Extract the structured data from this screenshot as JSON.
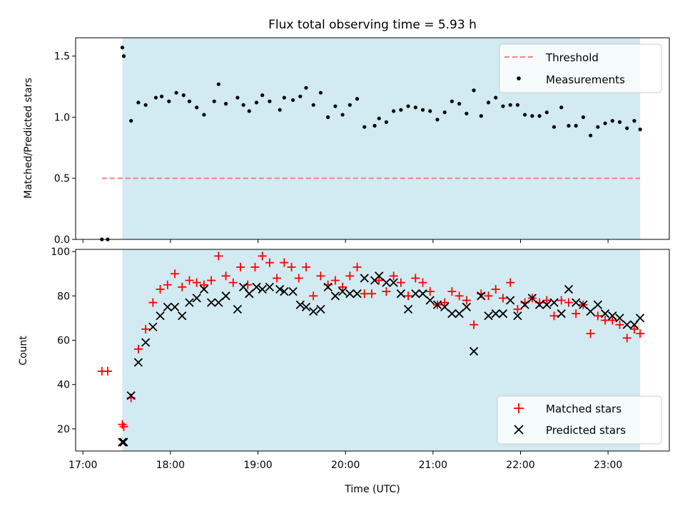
{
  "chart_data": [
    {
      "type": "scatter",
      "title": "Flux total observing time = 5.93 h",
      "xlabel": "",
      "ylabel": "Matched/Predicted stars",
      "xlim": [
        "16:55",
        "23:42"
      ],
      "ylim": [
        0,
        1.65
      ],
      "yticks": [
        0.0,
        0.5,
        1.0,
        1.5
      ],
      "ytick_labels": [
        "0.0",
        "0.5",
        "1.0",
        "1.5"
      ],
      "highlight_span": [
        "17:27",
        "23:22"
      ],
      "highlight_color": "#add8e6",
      "threshold": {
        "name": "Threshold",
        "x": [
          "17:13",
          "23:22"
        ],
        "y": 0.5,
        "color": "#ff7f7f",
        "style": "dashed"
      },
      "series": [
        {
          "name": "Measurements",
          "color": "#000000",
          "points": [
            [
              "17:13",
              0.0
            ],
            [
              "17:17",
              0.0
            ],
            [
              "17:27",
              1.57
            ],
            [
              "17:28",
              1.5
            ],
            [
              "17:33",
              0.97
            ],
            [
              "17:38",
              1.12
            ],
            [
              "17:43",
              1.1
            ],
            [
              "17:50",
              1.16
            ],
            [
              "17:54",
              1.17
            ],
            [
              "17:59",
              1.13
            ],
            [
              "18:04",
              1.2
            ],
            [
              "18:09",
              1.18
            ],
            [
              "18:13",
              1.13
            ],
            [
              "18:18",
              1.08
            ],
            [
              "18:23",
              1.02
            ],
            [
              "18:30",
              1.13
            ],
            [
              "18:33",
              1.27
            ],
            [
              "18:38",
              1.11
            ],
            [
              "18:46",
              1.16
            ],
            [
              "18:50",
              1.1
            ],
            [
              "18:54",
              1.05
            ],
            [
              "18:59",
              1.12
            ],
            [
              "19:03",
              1.18
            ],
            [
              "19:08",
              1.13
            ],
            [
              "19:15",
              1.06
            ],
            [
              "19:18",
              1.16
            ],
            [
              "19:24",
              1.14
            ],
            [
              "19:29",
              1.17
            ],
            [
              "19:33",
              1.24
            ],
            [
              "19:38",
              1.1
            ],
            [
              "19:43",
              1.2
            ],
            [
              "19:48",
              1.0
            ],
            [
              "19:53",
              1.09
            ],
            [
              "19:58",
              1.02
            ],
            [
              "20:03",
              1.1
            ],
            [
              "20:08",
              1.15
            ],
            [
              "20:13",
              0.92
            ],
            [
              "20:20",
              0.93
            ],
            [
              "20:23",
              0.99
            ],
            [
              "20:28",
              0.96
            ],
            [
              "20:33",
              1.05
            ],
            [
              "20:38",
              1.06
            ],
            [
              "20:43",
              1.09
            ],
            [
              "20:48",
              1.08
            ],
            [
              "20:53",
              1.06
            ],
            [
              "20:58",
              1.05
            ],
            [
              "21:03",
              0.98
            ],
            [
              "21:08",
              1.04
            ],
            [
              "21:13",
              1.13
            ],
            [
              "21:18",
              1.11
            ],
            [
              "21:23",
              1.03
            ],
            [
              "21:28",
              1.22
            ],
            [
              "21:33",
              1.01
            ],
            [
              "21:38",
              1.12
            ],
            [
              "21:43",
              1.16
            ],
            [
              "21:48",
              1.09
            ],
            [
              "21:53",
              1.1
            ],
            [
              "21:58",
              1.1
            ],
            [
              "22:03",
              1.02
            ],
            [
              "22:08",
              1.01
            ],
            [
              "22:13",
              1.01
            ],
            [
              "22:18",
              1.04
            ],
            [
              "22:23",
              0.92
            ],
            [
              "22:28",
              1.08
            ],
            [
              "22:33",
              0.93
            ],
            [
              "22:38",
              0.93
            ],
            [
              "22:43",
              1.0
            ],
            [
              "22:48",
              0.85
            ],
            [
              "22:53",
              0.92
            ],
            [
              "22:58",
              0.95
            ],
            [
              "23:03",
              0.97
            ],
            [
              "23:08",
              0.96
            ],
            [
              "23:13",
              0.91
            ],
            [
              "23:18",
              0.97
            ],
            [
              "23:22",
              0.9
            ]
          ]
        }
      ],
      "legend": {
        "placement": "top-right",
        "entries": [
          "Threshold",
          "Measurements"
        ]
      }
    },
    {
      "type": "scatter",
      "title": "",
      "xlabel": "Time (UTC)",
      "ylabel": "Count",
      "xlim": [
        "16:55",
        "23:42"
      ],
      "ylim": [
        10,
        101
      ],
      "xticks": [
        "17:00",
        "18:00",
        "19:00",
        "20:00",
        "21:00",
        "22:00",
        "23:00"
      ],
      "yticks": [
        20,
        40,
        60,
        80,
        100
      ],
      "ytick_labels": [
        "20",
        "40",
        "60",
        "80",
        "100"
      ],
      "highlight_span": [
        "17:27",
        "23:22"
      ],
      "highlight_color": "#add8e6",
      "series": [
        {
          "name": "Matched stars",
          "marker": "plus",
          "color": "#ff0000",
          "points": [
            [
              "17:13",
              46
            ],
            [
              "17:17",
              46
            ],
            [
              "17:27",
              22
            ],
            [
              "17:28",
              21
            ],
            [
              "17:33",
              34
            ],
            [
              "17:38",
              56
            ],
            [
              "17:43",
              65
            ],
            [
              "17:48",
              77
            ],
            [
              "17:53",
              83
            ],
            [
              "17:58",
              85
            ],
            [
              "18:03",
              90
            ],
            [
              "18:08",
              84
            ],
            [
              "18:13",
              87
            ],
            [
              "18:18",
              86
            ],
            [
              "18:23",
              85
            ],
            [
              "18:28",
              87
            ],
            [
              "18:33",
              98
            ],
            [
              "18:38",
              89
            ],
            [
              "18:43",
              86
            ],
            [
              "18:48",
              93
            ],
            [
              "18:53",
              85
            ],
            [
              "18:58",
              93
            ],
            [
              "19:03",
              98
            ],
            [
              "19:08",
              95
            ],
            [
              "19:13",
              88
            ],
            [
              "19:18",
              95
            ],
            [
              "19:23",
              93
            ],
            [
              "19:28",
              88
            ],
            [
              "19:33",
              93
            ],
            [
              "19:38",
              80
            ],
            [
              "19:43",
              89
            ],
            [
              "19:48",
              85
            ],
            [
              "19:53",
              87
            ],
            [
              "19:58",
              84
            ],
            [
              "20:03",
              89
            ],
            [
              "20:08",
              93
            ],
            [
              "20:13",
              81
            ],
            [
              "20:18",
              81
            ],
            [
              "20:23",
              87
            ],
            [
              "20:28",
              82
            ],
            [
              "20:33",
              89
            ],
            [
              "20:38",
              86
            ],
            [
              "20:43",
              80
            ],
            [
              "20:48",
              88
            ],
            [
              "20:53",
              86
            ],
            [
              "20:58",
              82
            ],
            [
              "21:03",
              76
            ],
            [
              "21:08",
              77
            ],
            [
              "21:13",
              82
            ],
            [
              "21:18",
              80
            ],
            [
              "21:23",
              78
            ],
            [
              "21:28",
              67
            ],
            [
              "21:33",
              81
            ],
            [
              "21:38",
              80
            ],
            [
              "21:43",
              83
            ],
            [
              "21:48",
              79
            ],
            [
              "21:53",
              86
            ],
            [
              "21:58",
              74
            ],
            [
              "22:03",
              77
            ],
            [
              "22:08",
              79
            ],
            [
              "22:13",
              77
            ],
            [
              "22:18",
              78
            ],
            [
              "22:23",
              71
            ],
            [
              "22:28",
              78
            ],
            [
              "22:33",
              77
            ],
            [
              "22:38",
              72
            ],
            [
              "22:43",
              76
            ],
            [
              "22:48",
              63
            ],
            [
              "22:53",
              71
            ],
            [
              "22:58",
              69
            ],
            [
              "23:03",
              69
            ],
            [
              "23:08",
              67
            ],
            [
              "23:13",
              61
            ],
            [
              "23:18",
              65
            ],
            [
              "23:22",
              63
            ]
          ]
        },
        {
          "name": "Predicted stars",
          "marker": "x",
          "color": "#000000",
          "points": [
            [
              "17:27",
              14
            ],
            [
              "17:28",
              14
            ],
            [
              "17:33",
              35
            ],
            [
              "17:38",
              50
            ],
            [
              "17:43",
              59
            ],
            [
              "17:48",
              66
            ],
            [
              "17:53",
              71
            ],
            [
              "17:58",
              75
            ],
            [
              "18:03",
              75
            ],
            [
              "18:08",
              71
            ],
            [
              "18:13",
              77
            ],
            [
              "18:18",
              79
            ],
            [
              "18:23",
              83
            ],
            [
              "18:28",
              77
            ],
            [
              "18:33",
              77
            ],
            [
              "18:38",
              80
            ],
            [
              "18:46",
              74
            ],
            [
              "18:50",
              84
            ],
            [
              "18:54",
              81
            ],
            [
              "18:59",
              84
            ],
            [
              "19:03",
              83
            ],
            [
              "19:08",
              84
            ],
            [
              "19:15",
              83
            ],
            [
              "19:18",
              82
            ],
            [
              "19:24",
              82
            ],
            [
              "19:29",
              76
            ],
            [
              "19:33",
              75
            ],
            [
              "19:38",
              73
            ],
            [
              "19:43",
              74
            ],
            [
              "19:48",
              84
            ],
            [
              "19:53",
              80
            ],
            [
              "19:58",
              82
            ],
            [
              "20:03",
              81
            ],
            [
              "20:08",
              81
            ],
            [
              "20:13",
              88
            ],
            [
              "20:20",
              87
            ],
            [
              "20:23",
              89
            ],
            [
              "20:28",
              86
            ],
            [
              "20:33",
              86
            ],
            [
              "20:38",
              81
            ],
            [
              "20:43",
              74
            ],
            [
              "20:48",
              81
            ],
            [
              "20:53",
              81
            ],
            [
              "20:58",
              78
            ],
            [
              "21:03",
              76
            ],
            [
              "21:08",
              75
            ],
            [
              "21:13",
              72
            ],
            [
              "21:18",
              72
            ],
            [
              "21:23",
              75
            ],
            [
              "21:28",
              55
            ],
            [
              "21:33",
              80
            ],
            [
              "21:38",
              71
            ],
            [
              "21:43",
              72
            ],
            [
              "21:48",
              72
            ],
            [
              "21:53",
              78
            ],
            [
              "21:58",
              71
            ],
            [
              "22:03",
              76
            ],
            [
              "22:08",
              79
            ],
            [
              "22:13",
              76
            ],
            [
              "22:18",
              76
            ],
            [
              "22:23",
              77
            ],
            [
              "22:28",
              72
            ],
            [
              "22:33",
              83
            ],
            [
              "22:38",
              77
            ],
            [
              "22:43",
              76
            ],
            [
              "22:48",
              73
            ],
            [
              "22:53",
              76
            ],
            [
              "22:58",
              72
            ],
            [
              "23:03",
              71
            ],
            [
              "23:08",
              70
            ],
            [
              "23:13",
              67
            ],
            [
              "23:18",
              67
            ],
            [
              "23:22",
              70
            ]
          ]
        }
      ],
      "legend": {
        "placement": "bottom-right",
        "entries": [
          "Matched stars",
          "Predicted stars"
        ]
      }
    }
  ]
}
